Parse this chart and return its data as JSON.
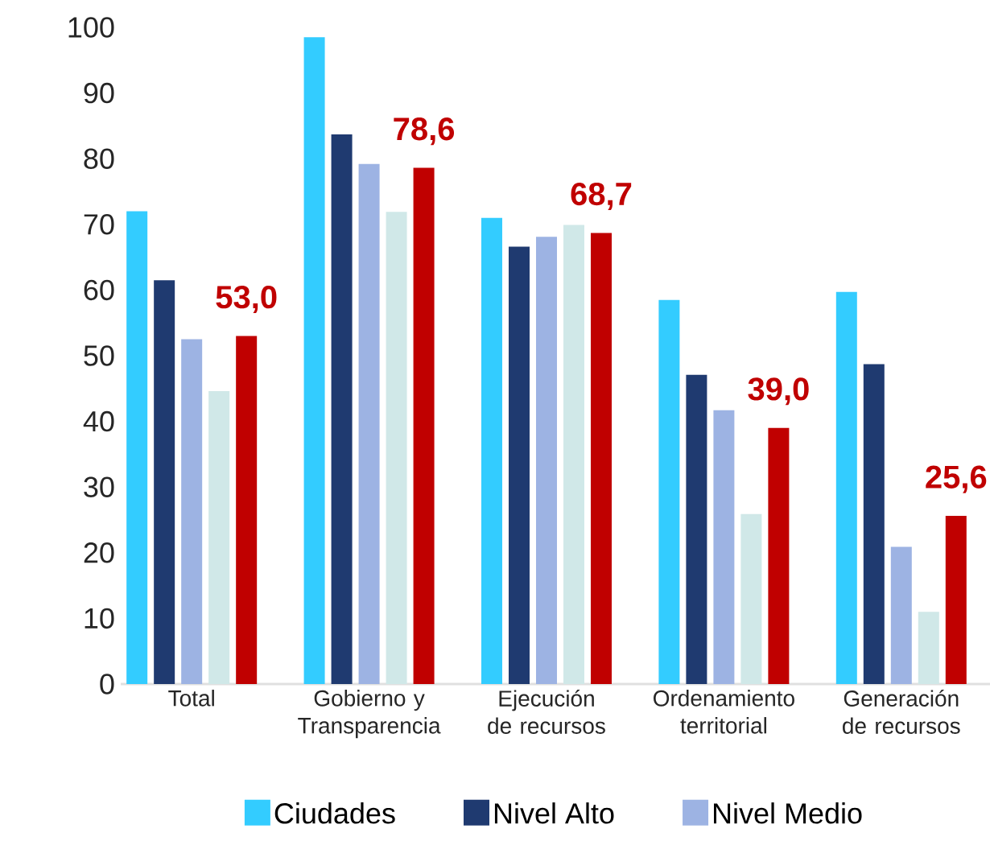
{
  "chart_data": {
    "type": "bar",
    "categories": [
      "Total",
      "Gobierno y Transparencia",
      "Ejecución de recursos",
      "Ordenamiento territorial",
      "Generación de recursos"
    ],
    "series": [
      {
        "name": "Ciudades",
        "color": "#33ccff",
        "values": [
          72,
          98.5,
          71,
          58.5,
          59.7
        ]
      },
      {
        "name": "Nivel Alto",
        "color": "#1f3a70",
        "values": [
          61.5,
          83.7,
          66.6,
          47.1,
          48.7
        ]
      },
      {
        "name": "Nivel Medio",
        "color": "#9db3e3",
        "values": [
          52.5,
          79.2,
          68.1,
          41.7,
          20.9
        ]
      },
      {
        "color": "#d0e8e8",
        "values": [
          44.6,
          71.9,
          69.9,
          25.9,
          11
        ]
      },
      {
        "color": "#c00000",
        "values": [
          53.0,
          78.6,
          68.7,
          39.0,
          25.6
        ],
        "value_labels": [
          "53,0",
          "78,6",
          "68,7",
          "39,0",
          "25,6"
        ]
      }
    ],
    "ylim": [
      0,
      100
    ],
    "yticks": [
      0,
      10,
      20,
      30,
      40,
      50,
      60,
      70,
      80,
      90,
      100
    ],
    "grid": false,
    "legend": "bottom"
  }
}
